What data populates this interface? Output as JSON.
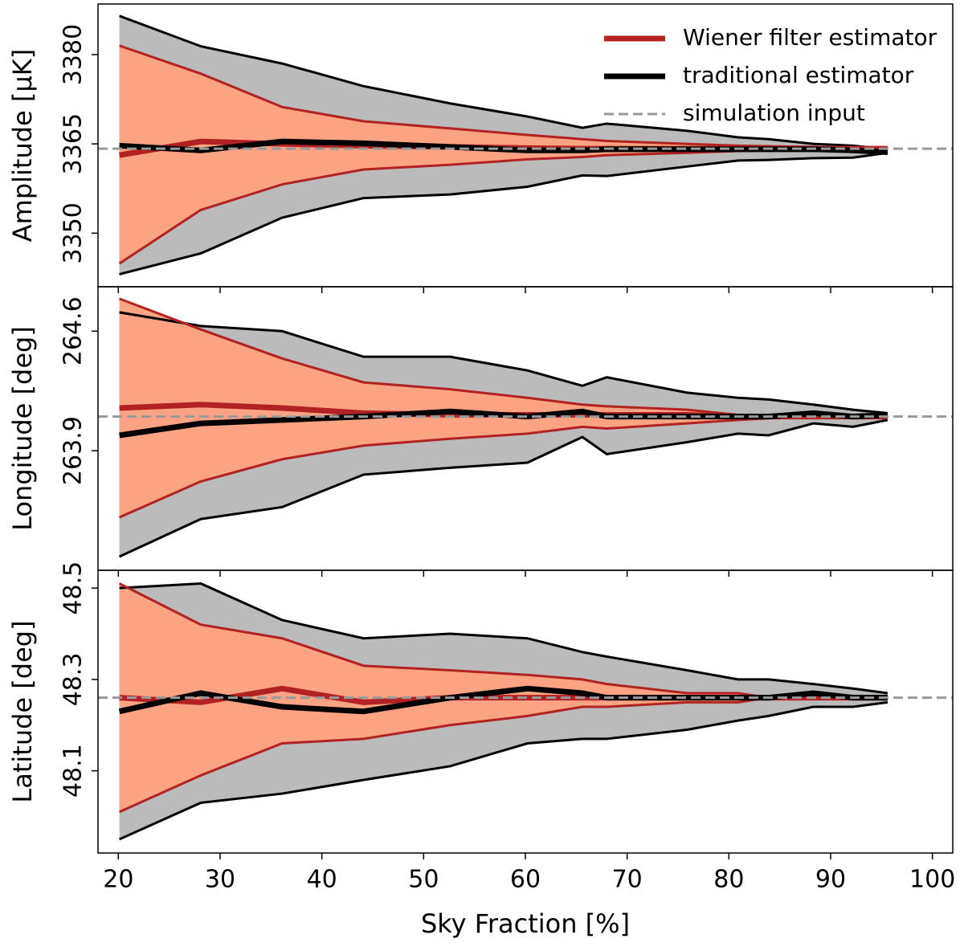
{
  "chart_data": [
    {
      "type": "line",
      "ylabel": "Amplitude [μK]",
      "x": [
        20.1,
        28.1,
        36.1,
        44.1,
        52.6,
        60.2,
        65.6,
        68.0,
        75.9,
        80.9,
        83.9,
        88.3,
        92.2,
        95.6
      ],
      "xlim": [
        18,
        102
      ],
      "xticks": [
        20,
        30,
        40,
        50,
        60,
        70,
        80,
        90,
        100
      ],
      "ylim": [
        3341,
        3388.5
      ],
      "yticks": [
        3350,
        3365,
        3380
      ],
      "legend": "upper right",
      "series": [
        {
          "name": "Wiener filter estimator",
          "color": "#b22222",
          "band_color": "#fca383",
          "values": [
            3363.1,
            3365.4,
            3365.0,
            3364.7,
            3364.5,
            3364.3,
            3364.2,
            3364.2,
            3364.2,
            3364.2,
            3364.2,
            3364.2,
            3364.2,
            3364.2
          ],
          "upper": [
            3381.5,
            3376.8,
            3371.2,
            3368.8,
            3367.6,
            3366.5,
            3365.8,
            3365.5,
            3365.0,
            3364.7,
            3364.6,
            3364.5,
            3364.3,
            3364.3
          ],
          "lower": [
            3344.9,
            3353.9,
            3358.2,
            3360.7,
            3361.5,
            3362.4,
            3362.8,
            3363.1,
            3363.5,
            3363.8,
            3363.9,
            3364.1,
            3364.1,
            3364.2
          ]
        },
        {
          "name": "traditional estimator",
          "color": "#000000",
          "band_color": "#bbbbbb",
          "values": [
            3364.7,
            3363.9,
            3365.4,
            3365.1,
            3364.5,
            3363.9,
            3363.9,
            3364.1,
            3364.1,
            3364.1,
            3364.1,
            3364.1,
            3363.9,
            3363.6
          ],
          "upper": [
            3386.5,
            3381.4,
            3378.5,
            3374.7,
            3371.8,
            3369.6,
            3367.7,
            3368.4,
            3367.2,
            3366.1,
            3365.8,
            3365.0,
            3364.7,
            3364.1
          ],
          "lower": [
            3343.1,
            3346.6,
            3352.6,
            3355.9,
            3356.5,
            3357.8,
            3359.7,
            3359.6,
            3361.2,
            3362.2,
            3362.3,
            3362.6,
            3362.7,
            3363.5
          ]
        }
      ],
      "reference": {
        "name": "simulation input",
        "color": "#999999",
        "value": 3364.2
      }
    },
    {
      "type": "line",
      "ylabel": "Longitude [deg]",
      "x": [
        20.1,
        28.1,
        36.1,
        44.1,
        52.6,
        60.2,
        65.6,
        68.0,
        75.9,
        80.9,
        83.9,
        88.3,
        92.2,
        95.6
      ],
      "xlim": [
        18,
        102
      ],
      "xticks": [
        20,
        30,
        40,
        50,
        60,
        70,
        80,
        90,
        100
      ],
      "ylim": [
        263.2,
        264.86
      ],
      "yticks": [
        263.9,
        264.6
      ],
      "series": [
        {
          "color": "#b22222",
          "band_color": "#fca383",
          "values": [
            264.15,
            264.17,
            264.15,
            264.12,
            264.11,
            264.11,
            264.11,
            264.11,
            264.11,
            264.1,
            264.1,
            264.1,
            264.1,
            264.1
          ],
          "upper": [
            264.79,
            264.61,
            264.44,
            264.3,
            264.26,
            264.21,
            264.17,
            264.16,
            264.14,
            264.11,
            264.11,
            264.11,
            264.11,
            264.11
          ],
          "lower": [
            263.51,
            263.72,
            263.85,
            263.93,
            263.97,
            264.0,
            264.04,
            264.03,
            264.06,
            264.08,
            264.09,
            264.1,
            264.1,
            264.1
          ]
        },
        {
          "color": "#000000",
          "band_color": "#bbbbbb",
          "values": [
            263.99,
            264.06,
            264.08,
            264.1,
            264.13,
            264.1,
            264.13,
            264.1,
            264.1,
            264.1,
            264.1,
            264.12,
            264.1,
            264.11
          ],
          "upper": [
            264.71,
            264.63,
            264.6,
            264.45,
            264.45,
            264.37,
            264.28,
            264.33,
            264.24,
            264.21,
            264.2,
            264.17,
            264.14,
            264.12
          ],
          "lower": [
            263.28,
            263.5,
            263.57,
            263.76,
            263.8,
            263.83,
            263.98,
            263.88,
            263.95,
            264.0,
            263.99,
            264.06,
            264.04,
            264.08
          ]
        }
      ],
      "reference": {
        "color": "#999999",
        "value": 264.1
      }
    },
    {
      "type": "line",
      "ylabel": "Latitude [deg]",
      "xlabel": "Sky Fraction [%]",
      "x": [
        20.1,
        28.1,
        36.1,
        44.1,
        52.6,
        60.2,
        65.6,
        68.0,
        75.9,
        80.9,
        83.9,
        88.3,
        92.2,
        95.6
      ],
      "xlim": [
        18,
        102
      ],
      "xticks": [
        20,
        30,
        40,
        50,
        60,
        70,
        80,
        90,
        100
      ],
      "ylim": [
        47.92,
        48.539
      ],
      "yticks": [
        48.1,
        48.3,
        48.5
      ],
      "series": [
        {
          "color": "#b22222",
          "band_color": "#fca383",
          "values": [
            48.26,
            48.25,
            48.28,
            48.25,
            48.26,
            48.26,
            48.26,
            48.26,
            48.26,
            48.26,
            48.26,
            48.26,
            48.26,
            48.26
          ],
          "upper": [
            48.51,
            48.42,
            48.39,
            48.33,
            48.32,
            48.31,
            48.3,
            48.29,
            48.27,
            48.27,
            48.26,
            48.26,
            48.26,
            48.26
          ],
          "lower": [
            48.01,
            48.09,
            48.16,
            48.17,
            48.2,
            48.22,
            48.24,
            48.24,
            48.25,
            48.25,
            48.26,
            48.26,
            48.26,
            48.26
          ]
        },
        {
          "color": "#000000",
          "band_color": "#bbbbbb",
          "values": [
            48.23,
            48.27,
            48.24,
            48.23,
            48.26,
            48.28,
            48.27,
            48.26,
            48.26,
            48.26,
            48.26,
            48.27,
            48.26,
            48.26
          ],
          "upper": [
            48.5,
            48.51,
            48.43,
            48.39,
            48.4,
            48.39,
            48.36,
            48.35,
            48.32,
            48.3,
            48.3,
            48.29,
            48.28,
            48.27
          ],
          "lower": [
            47.95,
            48.03,
            48.05,
            48.08,
            48.11,
            48.16,
            48.17,
            48.17,
            48.19,
            48.21,
            48.22,
            48.24,
            48.24,
            48.25
          ]
        }
      ],
      "reference": {
        "color": "#999999",
        "value": 48.26
      }
    }
  ]
}
